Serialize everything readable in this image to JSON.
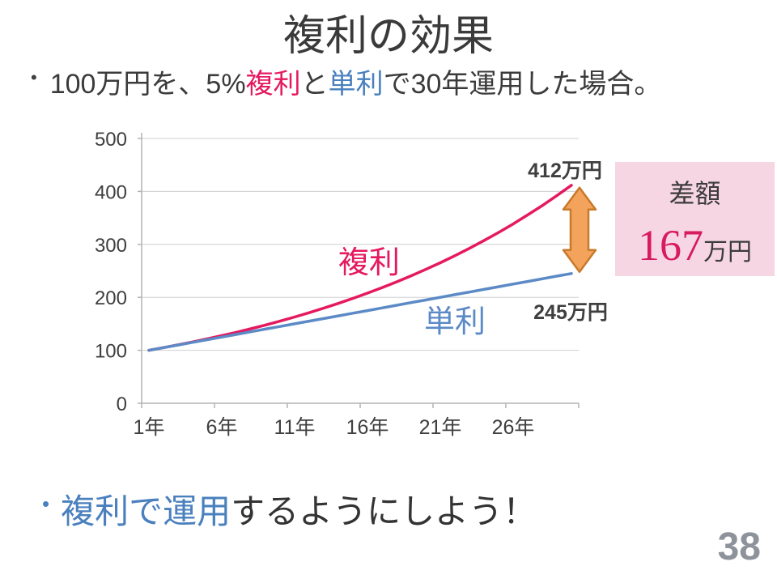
{
  "slide": {
    "title": "複利の効果",
    "page_number": "38"
  },
  "bullets": {
    "top": {
      "dot": "•",
      "prefix": "100万円を、5%",
      "compound_word": "複利",
      "conjunction": "と",
      "simple_word": "単利",
      "suffix": "で30年運用した場合。"
    },
    "bottom": {
      "dot": "•",
      "highlight": "複利で運用",
      "rest": "するようにしよう！"
    }
  },
  "chart_data": {
    "type": "line",
    "title": "",
    "xlabel": "",
    "ylabel": "",
    "ylim": [
      0,
      500
    ],
    "yticks": [
      0,
      100,
      200,
      300,
      400,
      500
    ],
    "x": [
      1,
      2,
      3,
      4,
      5,
      6,
      7,
      8,
      9,
      10,
      11,
      12,
      13,
      14,
      15,
      16,
      17,
      18,
      19,
      20,
      21,
      22,
      23,
      24,
      25,
      26,
      27,
      28,
      29,
      30
    ],
    "xtick_years": [
      1,
      6,
      11,
      16,
      21,
      26
    ],
    "xtick_labels": [
      "1年",
      "6年",
      "11年",
      "16年",
      "21年",
      "26年"
    ],
    "grid": true,
    "legend_position": "inline-labels",
    "grid_color": "#cfcfcf",
    "axis_color": "#b3b3b3",
    "tick_color": "#3f3f3f",
    "series": [
      {
        "key": "compound",
        "name": "複利",
        "color": "#e5195f",
        "end_label": "412万円",
        "values": [
          100,
          105,
          110.3,
          115.8,
          121.6,
          127.6,
          134,
          140.7,
          147.7,
          155.1,
          162.9,
          171,
          179.6,
          188.6,
          198,
          207.9,
          218.3,
          229.2,
          240.7,
          252.7,
          265.3,
          278.6,
          292.5,
          307.2,
          322.5,
          338.6,
          355.6,
          373.3,
          392,
          411.6
        ]
      },
      {
        "key": "simple",
        "name": "単利",
        "color": "#5b8ac6",
        "end_label": "245万円",
        "values": [
          100,
          105,
          110,
          115,
          120,
          125,
          130,
          135,
          140,
          145,
          150,
          155,
          160,
          165,
          170,
          175,
          180,
          185,
          190,
          195,
          200,
          205,
          210,
          215,
          220,
          225,
          230,
          235,
          240,
          245
        ]
      }
    ],
    "arrow": {
      "fill": "#f3a35b",
      "stroke": "#c8792a"
    }
  },
  "difference_box": {
    "label": "差額",
    "value": "167",
    "unit": "万円",
    "background": "#f6d6e2"
  },
  "colors": {
    "pink_accent": "#e5195f",
    "blue_accent": "#4a80be",
    "page_number_gray": "#8e939b"
  }
}
